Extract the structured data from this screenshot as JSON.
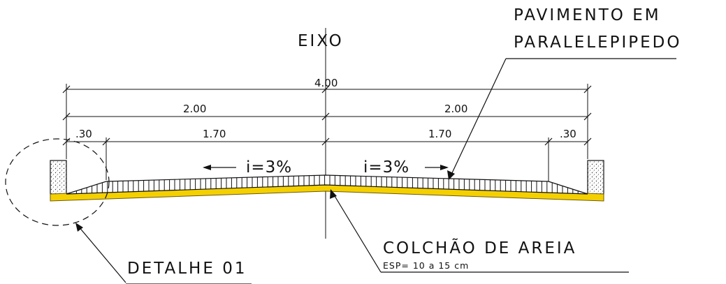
{
  "labels": {
    "axis": "EIXO",
    "pavement_line1": "PAVIMENTO EM",
    "pavement_line2": "PARALELEPIPEDO",
    "sand_title": "COLCHÃO DE AREIA",
    "sand_thickness": "ESP= 10 a 15 cm",
    "detail": "DETALHE 01",
    "slope_left": "i=3%",
    "slope_right": "i=3%"
  },
  "dimensions": {
    "total": "4.00",
    "half_left": "2.00",
    "half_right": "2.00",
    "lane_left": "1.70",
    "lane_right": "1.70",
    "curb_left": ".30",
    "curb_right": ".30"
  },
  "colors": {
    "sand_layer": "#f5d000",
    "sand_outline": "#6b5a00",
    "ink": "#111111"
  }
}
